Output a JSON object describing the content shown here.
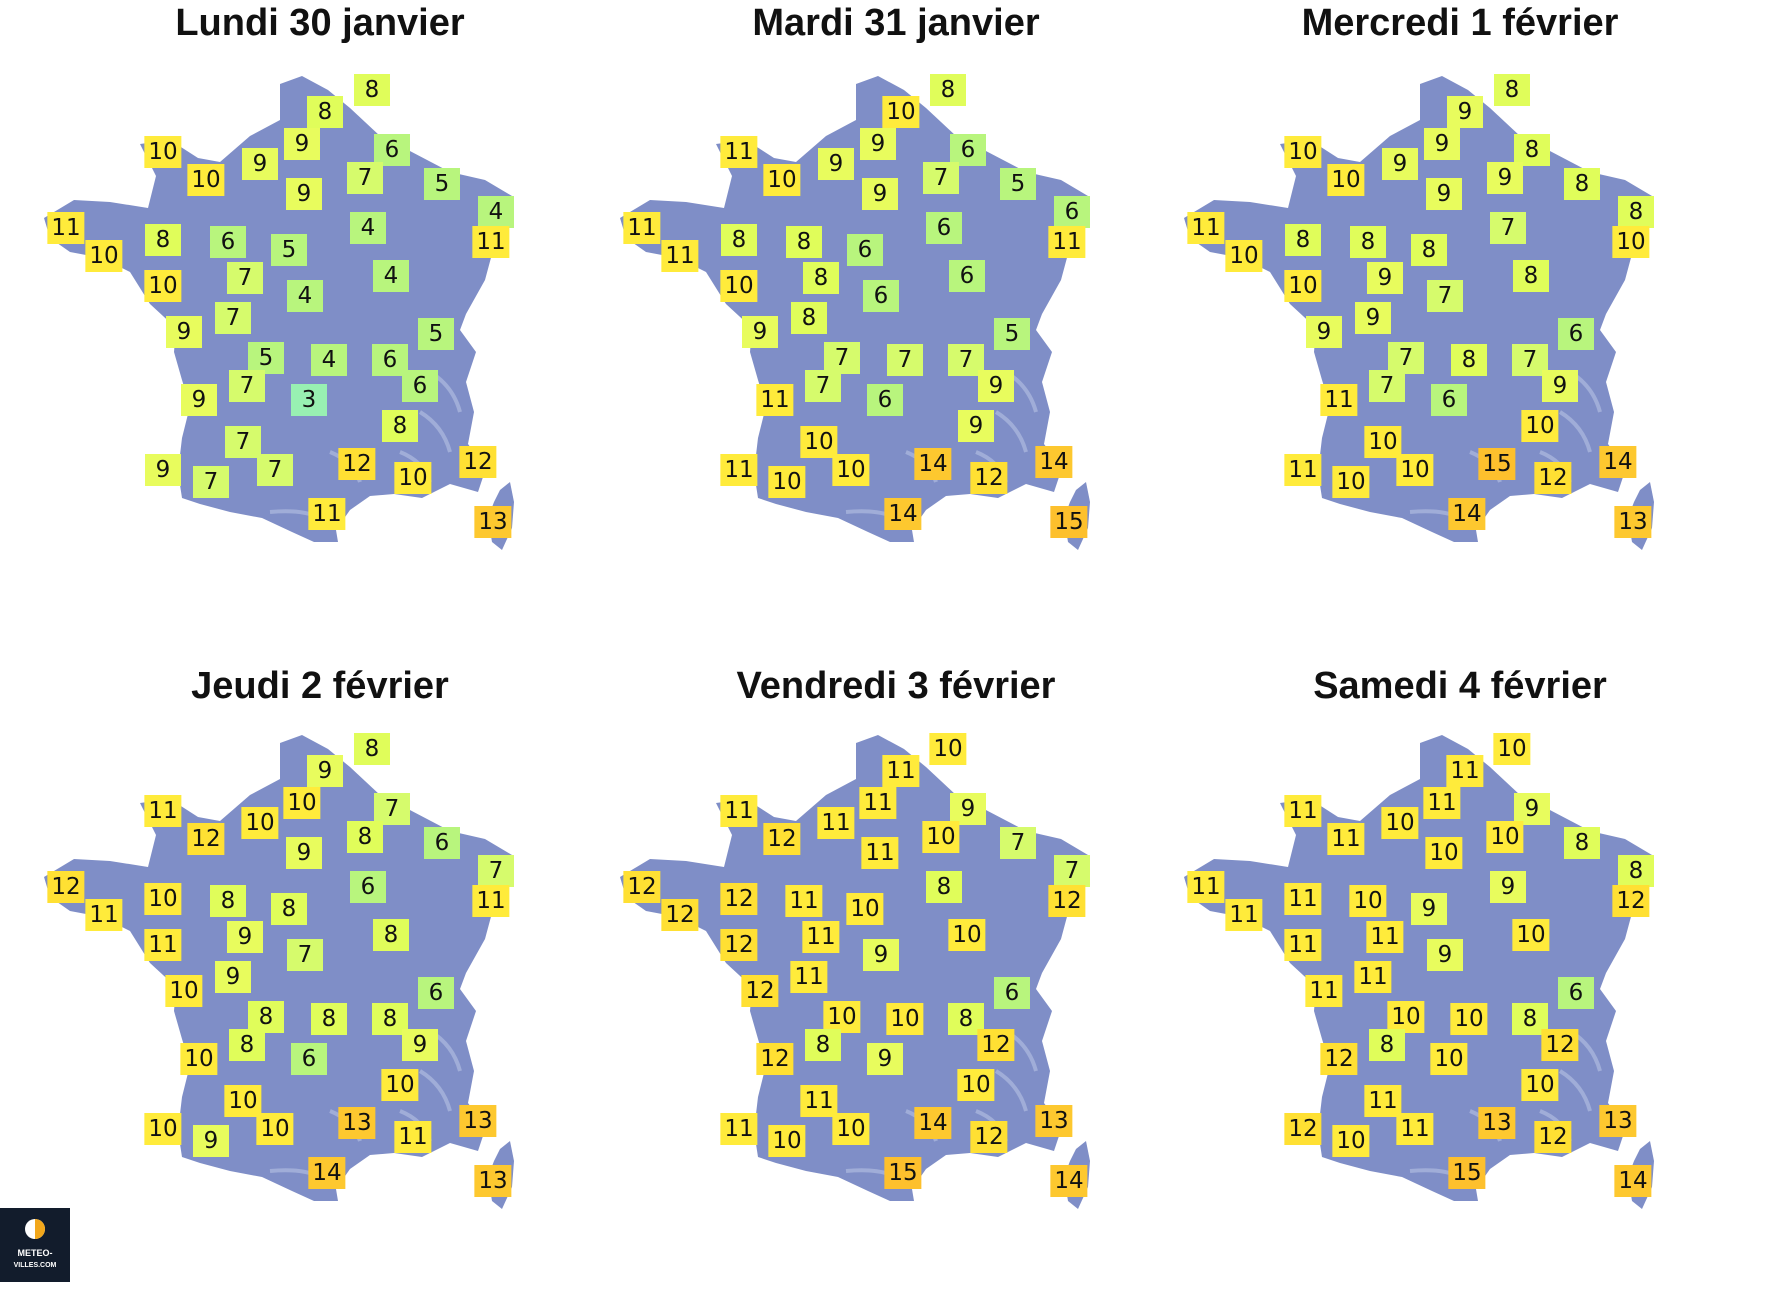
{
  "colors": {
    "land": "#7f8ec7",
    "relief": "#bcc6e6",
    "scale": {
      "3": "#98f0b2",
      "4": "#b8f57d",
      "5": "#b8f57d",
      "6": "#b8f57d",
      "7": "#d6fb6c",
      "8": "#e0fd5a",
      "9": "#e8fc5d",
      "10": "#ffeb3b",
      "11": "#ffeb3b",
      "12": "#ffe033",
      "13": "#fdc82f",
      "14": "#fdc82f",
      "15": "#fdc02d"
    }
  },
  "panels": [
    {
      "title": "Lundi 30 janvier",
      "values": [
        "8",
        "8",
        "10",
        "9",
        "9",
        "6",
        "10",
        "7",
        "5",
        "9",
        "4",
        "11",
        "10",
        "8",
        "6",
        "5",
        "4",
        "11",
        "10",
        "7",
        "4",
        "4",
        "7",
        "5",
        "9",
        "5",
        "4",
        "6",
        "7",
        "6",
        "9",
        "3",
        "8",
        "7",
        "7",
        "12",
        "10",
        "12",
        "9",
        "7",
        "11",
        "13"
      ]
    },
    {
      "title": "Mardi 31 janvier",
      "values": [
        "10",
        "8",
        "11",
        "9",
        "9",
        "6",
        "10",
        "7",
        "5",
        "9",
        "6",
        "11",
        "11",
        "8",
        "8",
        "6",
        "6",
        "11",
        "10",
        "8",
        "6",
        "6",
        "8",
        "5",
        "9",
        "7",
        "7",
        "7",
        "7",
        "9",
        "11",
        "6",
        "9",
        "10",
        "10",
        "14",
        "12",
        "14",
        "11",
        "10",
        "14",
        "15"
      ]
    },
    {
      "title": "Mercredi 1 février",
      "values": [
        "9",
        "8",
        "10",
        "9",
        "9",
        "8",
        "10",
        "9",
        "8",
        "9",
        "8",
        "11",
        "10",
        "8",
        "8",
        "8",
        "7",
        "10",
        "10",
        "9",
        "7",
        "8",
        "9",
        "6",
        "9",
        "7",
        "8",
        "7",
        "7",
        "9",
        "11",
        "6",
        "10",
        "10",
        "10",
        "15",
        "12",
        "14",
        "11",
        "10",
        "14",
        "13"
      ]
    },
    {
      "title": "Jeudi 2 février",
      "values": [
        "9",
        "8",
        "11",
        "10",
        "10",
        "7",
        "12",
        "8",
        "6",
        "9",
        "7",
        "12",
        "11",
        "10",
        "8",
        "8",
        "6",
        "11",
        "11",
        "9",
        "7",
        "8",
        "9",
        "6",
        "10",
        "8",
        "8",
        "8",
        "8",
        "9",
        "10",
        "6",
        "10",
        "10",
        "10",
        "13",
        "11",
        "13",
        "10",
        "9",
        "14",
        "13"
      ]
    },
    {
      "title": "Vendredi 3 février",
      "values": [
        "11",
        "10",
        "11",
        "11",
        "11",
        "9",
        "12",
        "10",
        "7",
        "11",
        "7",
        "12",
        "12",
        "12",
        "11",
        "10",
        "8",
        "12",
        "12",
        "11",
        "9",
        "10",
        "11",
        "6",
        "12",
        "10",
        "10",
        "8",
        "8",
        "12",
        "12",
        "9",
        "10",
        "11",
        "10",
        "14",
        "12",
        "13",
        "11",
        "10",
        "15",
        "14"
      ]
    },
    {
      "title": "Samedi 4 février",
      "values": [
        "11",
        "10",
        "11",
        "11",
        "10",
        "9",
        "11",
        "10",
        "8",
        "10",
        "8",
        "11",
        "11",
        "11",
        "10",
        "9",
        "9",
        "12",
        "11",
        "11",
        "9",
        "10",
        "11",
        "6",
        "11",
        "10",
        "10",
        "8",
        "8",
        "12",
        "12",
        "10",
        "10",
        "11",
        "11",
        "13",
        "12",
        "13",
        "12",
        "10",
        "15",
        "14"
      ]
    }
  ],
  "logo": {
    "line1": "METEO-",
    "line2": "VILLES.COM"
  }
}
